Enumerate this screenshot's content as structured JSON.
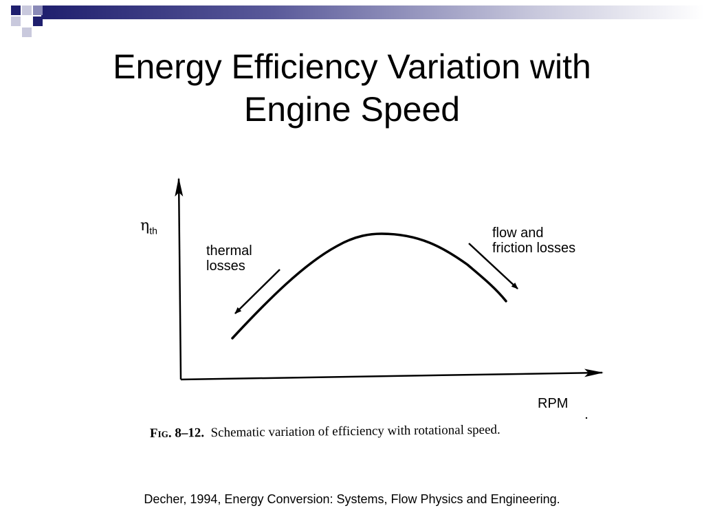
{
  "slide": {
    "title": "Energy Efficiency Variation with\nEngine Speed",
    "citation": "Decher, 1994, Energy Conversion: Systems, Flow Physics and Engineering."
  },
  "figure": {
    "y_axis_symbol": "η",
    "y_axis_subscript": "th",
    "x_axis_label": "RPM",
    "left_annotation": "thermal\nlosses",
    "right_annotation": "flow and\nfriction losses",
    "caption_number": "Fig. 8–12.",
    "caption_text": "Schematic variation of efficiency with rotational speed."
  },
  "colors": {
    "banner_dark": "#1f1f6e",
    "banner_mid": "#5a5a9a",
    "banner_light": "#c9c9dd",
    "ink": "#000000"
  }
}
